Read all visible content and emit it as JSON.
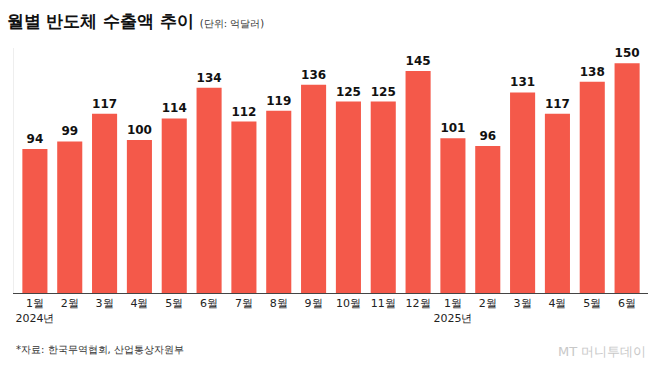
{
  "chart_data": {
    "type": "bar",
    "title": "월별 반도체 수출액 추이",
    "subtitle": "(단위: 억달러)",
    "categories": [
      "1월\n2024년",
      "2월",
      "3월",
      "4월",
      "5월",
      "6월",
      "7월",
      "8월",
      "9월",
      "10월",
      "11월",
      "12월",
      "1월\n2025년",
      "2월",
      "3월",
      "4월",
      "5월",
      "6월"
    ],
    "values": [
      94,
      99,
      117,
      100,
      114,
      134,
      112,
      119,
      136,
      125,
      125,
      145,
      101,
      96,
      131,
      117,
      138,
      150
    ],
    "color": "#f4594a",
    "ylim": [
      0,
      160
    ],
    "grid": false,
    "data_labels": true,
    "tick_labels": "x",
    "annotations": [
      "*자료: 한국무역협회, 산업통상자원부",
      "MT 머니투데이"
    ]
  }
}
